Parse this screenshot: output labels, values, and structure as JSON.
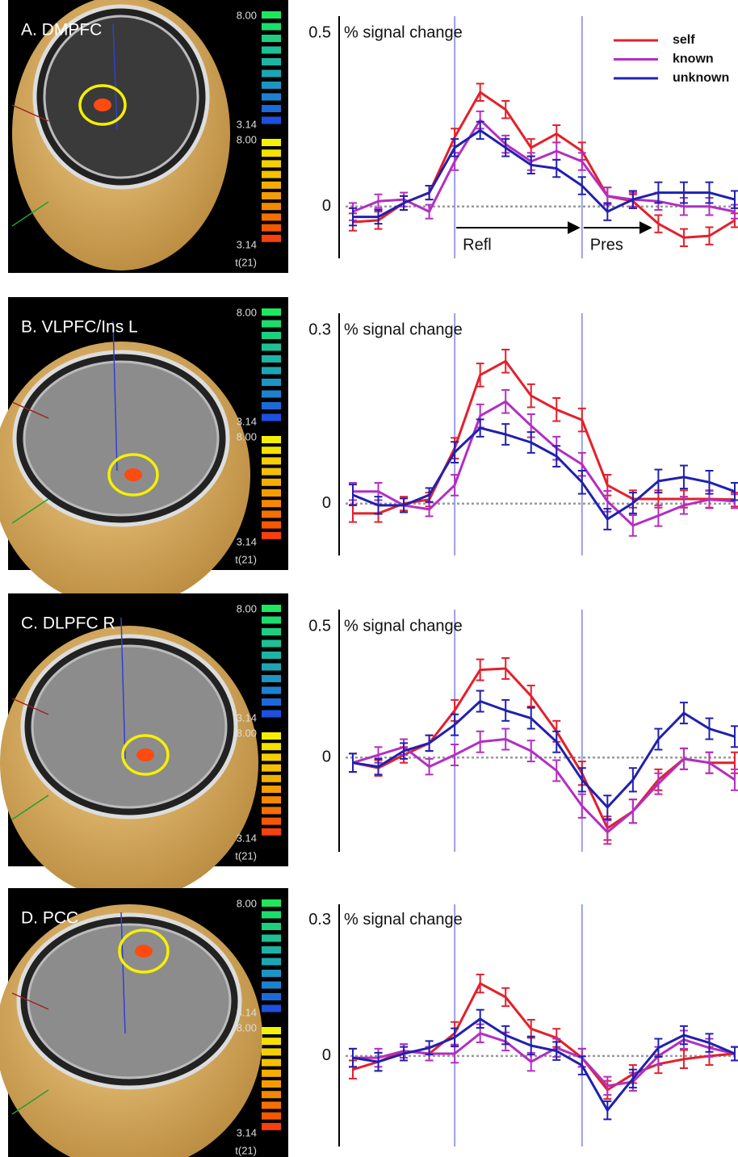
{
  "chart_data": [
    {
      "type": "line",
      "panel_label": "A. DMPFC",
      "colorbar_labels": [
        "8.00",
        "3.14",
        "8.00",
        "3.14",
        "t(21)"
      ],
      "ylabel": "% signal change",
      "ylim": [
        -0.15,
        0.55
      ],
      "yticks": [
        0.5,
        0
      ],
      "xlim": [
        0,
        15
      ],
      "categories": [
        null,
        null,
        null,
        null,
        null,
        null,
        null,
        null,
        null,
        null,
        null,
        null,
        null,
        null,
        null,
        null
      ],
      "markers": [
        4,
        9
      ],
      "annotations": [
        "Refl",
        "Pres"
      ],
      "legend": "upper right",
      "series": [
        {
          "name": "self",
          "color": "#e3202b",
          "values": [
            -0.045,
            -0.04,
            0.01,
            0.04,
            0.2,
            0.33,
            0.28,
            0.17,
            0.21,
            0.16,
            0.03,
            0.015,
            -0.05,
            -0.09,
            -0.085,
            -0.04
          ],
          "errors": [
            0.025,
            0.025,
            0.02,
            0.02,
            0.025,
            0.025,
            0.025,
            0.025,
            0.025,
            0.025,
            0.025,
            0.02,
            0.025,
            0.025,
            0.025,
            0.02
          ]
        },
        {
          "name": "known",
          "color": "#b22fc2",
          "values": [
            -0.015,
            0.015,
            0.02,
            -0.015,
            0.13,
            0.25,
            0.18,
            0.13,
            0.16,
            0.13,
            0.03,
            0.02,
            0.015,
            0,
            0,
            -0.015
          ],
          "errors": [
            0.025,
            0.02,
            0.02,
            0.02,
            0.025,
            0.025,
            0.025,
            0.025,
            0.025,
            0.025,
            0.025,
            0.02,
            0.025,
            0.025,
            0.025,
            0.02
          ]
        },
        {
          "name": "unknown",
          "color": "#2020b0",
          "values": [
            -0.03,
            -0.03,
            0.01,
            0.04,
            0.17,
            0.22,
            0.17,
            0.12,
            0.11,
            0.06,
            -0.015,
            0.02,
            0.04,
            0.04,
            0.04,
            0.02
          ],
          "errors": [
            0.025,
            0.02,
            0.02,
            0.02,
            0.025,
            0.025,
            0.025,
            0.025,
            0.025,
            0.025,
            0.025,
            0.025,
            0.03,
            0.03,
            0.03,
            0.025
          ]
        }
      ]
    },
    {
      "type": "line",
      "panel_label": "B. VLPFC/Ins L",
      "colorbar_labels": [
        "8.00",
        "3.14",
        "8.00",
        "3.14",
        "t(21)"
      ],
      "ylabel": "% signal change",
      "ylim": [
        -0.09,
        0.33
      ],
      "yticks": [
        0.3,
        0
      ],
      "xlim": [
        0,
        15
      ],
      "categories": [
        null,
        null,
        null,
        null,
        null,
        null,
        null,
        null,
        null,
        null,
        null,
        null,
        null,
        null,
        null,
        null
      ],
      "markers": [
        4,
        9
      ],
      "series": [
        {
          "color": "#e3202b",
          "values": [
            -0.017,
            -0.017,
            0,
            0.007,
            0.096,
            0.223,
            0.247,
            0.187,
            0.163,
            0.145,
            0.032,
            0.008,
            0.008,
            0.008,
            0.008,
            0.007
          ],
          "errors": [
            0.015,
            0.015,
            0.012,
            0.012,
            0.018,
            0.02,
            0.02,
            0.02,
            0.02,
            0.02,
            0.018,
            0.015,
            0.015,
            0.015,
            0.015,
            0.012
          ]
        },
        {
          "color": "#b22fc2",
          "values": [
            0.021,
            0.021,
            -0.003,
            -0.01,
            0.032,
            0.152,
            0.177,
            0.135,
            0.096,
            0.068,
            0.004,
            -0.038,
            -0.021,
            -0.003,
            0.007,
            0.004
          ],
          "errors": [
            0.015,
            0.015,
            0.012,
            0.012,
            0.018,
            0.02,
            0.02,
            0.02,
            0.02,
            0.02,
            0.018,
            0.018,
            0.018,
            0.015,
            0.015,
            0.012
          ]
        },
        {
          "color": "#2020b0",
          "values": [
            0.015,
            -0.003,
            -0.003,
            0.015,
            0.089,
            0.131,
            0.12,
            0.106,
            0.082,
            0.037,
            -0.027,
            0.001,
            0.039,
            0.046,
            0.037,
            0.021
          ],
          "errors": [
            0.018,
            0.015,
            0.012,
            0.012,
            0.018,
            0.015,
            0.018,
            0.018,
            0.018,
            0.02,
            0.018,
            0.018,
            0.02,
            0.02,
            0.02,
            0.015
          ]
        }
      ]
    },
    {
      "type": "line",
      "panel_label": "C. DLPFC R",
      "colorbar_labels": [
        "8.00",
        "3.14",
        "8.00",
        "3.14",
        "t(21)"
      ],
      "ylabel": "% signal change",
      "ylim": [
        -0.36,
        0.565
      ],
      "yticks": [
        0.5,
        0
      ],
      "xlim": [
        0,
        15
      ],
      "categories": [
        null,
        null,
        null,
        null,
        null,
        null,
        null,
        null,
        null,
        null,
        null,
        null,
        null,
        null,
        null,
        null
      ],
      "markers": [
        4,
        9
      ],
      "series": [
        {
          "color": "#e3202b",
          "values": [
            -0.02,
            -0.04,
            0.01,
            0.055,
            0.18,
            0.335,
            0.34,
            0.235,
            0.1,
            -0.06,
            -0.27,
            -0.205,
            -0.085,
            -0.005,
            -0.02,
            -0.02
          ],
          "errors": [
            0.035,
            0.03,
            0.03,
            0.03,
            0.04,
            0.04,
            0.04,
            0.04,
            0.04,
            0.045,
            0.045,
            0.045,
            0.04,
            0.04,
            0.04,
            0.04
          ]
        },
        {
          "color": "#b22fc2",
          "values": [
            -0.02,
            0.01,
            0.04,
            -0.035,
            0.01,
            0.06,
            0.07,
            0.025,
            -0.05,
            -0.185,
            -0.285,
            -0.205,
            -0.1,
            -0.005,
            -0.02,
            -0.085
          ],
          "errors": [
            0.035,
            0.03,
            0.03,
            0.03,
            0.04,
            0.04,
            0.04,
            0.04,
            0.04,
            0.045,
            0.045,
            0.045,
            0.04,
            0.04,
            0.04,
            0.04
          ]
        },
        {
          "color": "#2020b0",
          "values": [
            -0.02,
            -0.035,
            0.025,
            0.055,
            0.125,
            0.215,
            0.18,
            0.15,
            0.06,
            -0.085,
            -0.19,
            -0.085,
            0.07,
            0.17,
            0.11,
            0.08
          ],
          "errors": [
            0.035,
            0.03,
            0.03,
            0.03,
            0.04,
            0.04,
            0.04,
            0.04,
            0.04,
            0.045,
            0.045,
            0.045,
            0.04,
            0.04,
            0.04,
            0.04
          ]
        }
      ]
    },
    {
      "type": "line",
      "panel_label": "D. PCC",
      "colorbar_labels": [
        "8.00",
        "3.14",
        "8.00",
        "3.14",
        "t(21)"
      ],
      "ylabel": "% signal change",
      "ylim": [
        -0.2,
        0.335
      ],
      "yticks": [
        0.3,
        0
      ],
      "xlim": [
        0,
        15
      ],
      "categories": [
        null,
        null,
        null,
        null,
        null,
        null,
        null,
        null,
        null,
        null,
        null,
        null,
        null,
        null,
        null,
        null
      ],
      "markers": [
        4,
        9
      ],
      "series": [
        {
          "color": "#e3202b",
          "values": [
            -0.03,
            -0.013,
            0.011,
            0.005,
            0.05,
            0.16,
            0.13,
            0.06,
            0.04,
            -0.004,
            -0.075,
            -0.04,
            -0.018,
            -0.007,
            0,
            0.005
          ],
          "errors": [
            0.02,
            0.02,
            0.015,
            0.015,
            0.025,
            0.02,
            0.02,
            0.02,
            0.02,
            0.02,
            0.02,
            0.02,
            0.02,
            0.02,
            0.02,
            0.015
          ]
        },
        {
          "color": "#b22fc2",
          "values": [
            -0.004,
            -0.004,
            0.011,
            0.005,
            0.005,
            0.05,
            0.032,
            -0.013,
            0.018,
            -0.004,
            -0.066,
            -0.057,
            0,
            0.036,
            0.018,
            0.005
          ],
          "errors": [
            0.02,
            0.02,
            0.015,
            0.015,
            0.02,
            0.02,
            0.02,
            0.02,
            0.02,
            0.02,
            0.02,
            0.02,
            0.02,
            0.02,
            0.02,
            0.015
          ]
        },
        {
          "color": "#2020b0",
          "values": [
            -0.004,
            -0.013,
            0.005,
            0.018,
            0.041,
            0.082,
            0.046,
            0.023,
            0.011,
            -0.021,
            -0.12,
            -0.05,
            0.018,
            0.046,
            0.029,
            0.005
          ],
          "errors": [
            0.02,
            0.02,
            0.015,
            0.015,
            0.02,
            0.02,
            0.02,
            0.02,
            0.02,
            0.02,
            0.02,
            0.02,
            0.02,
            0.02,
            0.02,
            0.015
          ]
        }
      ]
    }
  ]
}
